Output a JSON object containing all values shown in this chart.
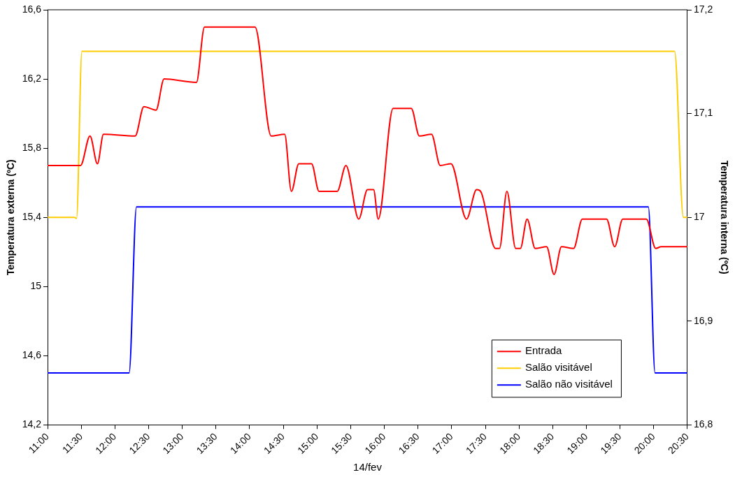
{
  "chart_data": {
    "type": "line",
    "xlabel": "14/fev",
    "ylabel": "Temperatura externa (ºC)",
    "y2label": "Temperatura interna (ºC)",
    "xlim": [
      11,
      20.5
    ],
    "xticks": [
      {
        "value": 11,
        "label": "11:00"
      },
      {
        "value": 11.5,
        "label": "11:30"
      },
      {
        "value": 12,
        "label": "12:00"
      },
      {
        "value": 12.5,
        "label": "12:30"
      },
      {
        "value": 13,
        "label": "13:00"
      },
      {
        "value": 13.5,
        "label": "13:30"
      },
      {
        "value": 14,
        "label": "14:00"
      },
      {
        "value": 14.5,
        "label": "14:30"
      },
      {
        "value": 15,
        "label": "15:00"
      },
      {
        "value": 15.5,
        "label": "15:30"
      },
      {
        "value": 16,
        "label": "16:00"
      },
      {
        "value": 16.5,
        "label": "16:30"
      },
      {
        "value": 17,
        "label": "17:00"
      },
      {
        "value": 17.5,
        "label": "17:30"
      },
      {
        "value": 18,
        "label": "18:00"
      },
      {
        "value": 18.5,
        "label": "18:30"
      },
      {
        "value": 19,
        "label": "19:00"
      },
      {
        "value": 19.5,
        "label": "19:30"
      },
      {
        "value": 20,
        "label": "20:00"
      },
      {
        "value": 20.5,
        "label": "20:30"
      }
    ],
    "ylim": [
      14.2,
      16.6
    ],
    "yticks": [
      {
        "value": 14.2,
        "label": "14,2"
      },
      {
        "value": 14.6,
        "label": "14,6"
      },
      {
        "value": 15,
        "label": "15"
      },
      {
        "value": 15.4,
        "label": "15,4"
      },
      {
        "value": 15.8,
        "label": "15,8"
      },
      {
        "value": 16.2,
        "label": "16,2"
      },
      {
        "value": 16.6,
        "label": "16,6"
      }
    ],
    "y2lim": [
      16.8,
      17.2
    ],
    "y2ticks": [
      {
        "value": 16.8,
        "label": "16,8"
      },
      {
        "value": 16.9,
        "label": "16,9"
      },
      {
        "value": 17,
        "label": "17"
      },
      {
        "value": 17.1,
        "label": "17,1"
      },
      {
        "value": 17.2,
        "label": "17,2"
      }
    ],
    "grid": false,
    "legend": "bottom right",
    "marker": "none",
    "line_style": "solid",
    "series": [
      {
        "name": "Entrada",
        "color": "#ff0000",
        "x": [
          11,
          11.49,
          11.63,
          11.74,
          11.83,
          12.3,
          12.43,
          12.61,
          12.73,
          13.21,
          13.33,
          14.08,
          14.32,
          14.52,
          14.62,
          14.73,
          14.92,
          15.03,
          15.3,
          15.43,
          15.62,
          15.75,
          15.84,
          15.91,
          16.13,
          16.4,
          16.52,
          16.7,
          16.83,
          16.99,
          17.22,
          17.37,
          17.43,
          17.65,
          17.71,
          17.82,
          17.95,
          18.02,
          18.12,
          18.24,
          18.41,
          18.52,
          18.63,
          18.81,
          18.94,
          19.3,
          19.42,
          19.54,
          19.89,
          20.03,
          20.11,
          20.5
        ],
        "values": [
          15.7,
          15.7,
          15.87,
          15.71,
          15.88,
          15.87,
          16.04,
          16.02,
          16.2,
          16.18,
          16.5,
          16.5,
          15.87,
          15.88,
          15.55,
          15.71,
          15.71,
          15.55,
          15.55,
          15.7,
          15.39,
          15.56,
          15.56,
          15.39,
          16.03,
          16.03,
          15.87,
          15.88,
          15.7,
          15.71,
          15.39,
          15.56,
          15.55,
          15.22,
          15.22,
          15.55,
          15.22,
          15.22,
          15.39,
          15.22,
          15.23,
          15.07,
          15.23,
          15.22,
          15.39,
          15.39,
          15.23,
          15.39,
          15.39,
          15.22,
          15.23,
          15.23
        ]
      },
      {
        "name": "Salão visitável",
        "color": "#ffcc00",
        "axis": "y2",
        "x": [
          11,
          11.4,
          11.43,
          11.51,
          20.31,
          20.44,
          20.5
        ],
        "values": [
          17,
          17,
          16.999,
          17.16,
          17.16,
          17,
          17
        ]
      },
      {
        "name": "Salão não visitável",
        "color": "#0000ff",
        "axis": "y2",
        "x": [
          11,
          12.21,
          12.32,
          19.92,
          20.02,
          20.5
        ],
        "values": [
          16.85,
          16.85,
          17.01,
          17.01,
          16.85,
          16.85
        ]
      }
    ]
  }
}
